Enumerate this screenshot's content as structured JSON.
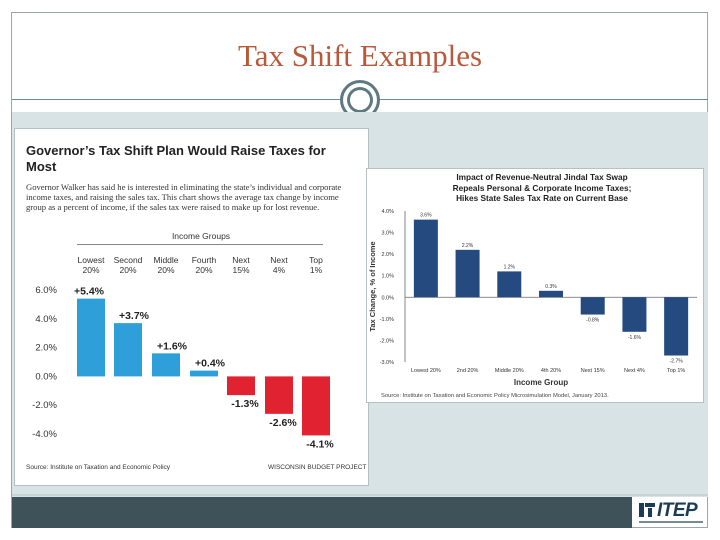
{
  "slide": {
    "title": "Tax Shift Examples",
    "logo_text": "ITEP"
  },
  "left_chart": {
    "title": "Governor’s Tax Shift Plan Would Raise Taxes for Most",
    "description": "Governor Walker has said he is interested in eliminating the state’s individual and corporate income taxes, and raising the sales tax. This chart shows the average tax change by income group as a percent of income, if the sales tax were raised to make up for lost revenue.",
    "groups_label": "Income Groups",
    "source": "Source: Institute on Taxation and Economic Policy",
    "project": "WISCONSIN BUDGET PROJECT"
  },
  "right_chart": {
    "title_lines": [
      "Impact of Revenue-Neutral Jindal Tax Swap",
      "Repeals Personal & Corporate Income Taxes;",
      "Hikes State Sales Tax Rate on Current Base"
    ],
    "source": "Source: Institute on Taxation and Economic Policy Microsimulation Model, January 2013."
  },
  "chart_data": [
    {
      "type": "bar",
      "title": "Governor’s Tax Shift Plan Would Raise Taxes for Most",
      "categories": [
        [
          "Lowest",
          "20%"
        ],
        [
          "Second",
          "20%"
        ],
        [
          "Middle",
          "20%"
        ],
        [
          "Fourth",
          "20%"
        ],
        [
          "Next",
          "15%"
        ],
        [
          "Next",
          "4%"
        ],
        [
          "Top",
          "1%"
        ]
      ],
      "values": [
        5.4,
        3.7,
        1.6,
        0.4,
        -1.3,
        -2.6,
        -4.1
      ],
      "data_labels": [
        "+5.4%",
        "+3.7%",
        "+1.6%",
        "+0.4%",
        "-1.3%",
        "-2.6%",
        "-4.1%"
      ],
      "ylim": [
        -4.0,
        6.0
      ],
      "yticks": [
        6.0,
        4.0,
        2.0,
        0.0,
        -2.0,
        -4.0
      ],
      "ytick_labels": [
        "6.0%",
        "4.0%",
        "2.0%",
        "0.0%",
        "-2.0%",
        "-4.0%"
      ],
      "colors": {
        "positive": "#2e9fd8",
        "negative": "#e02231"
      },
      "grid": false
    },
    {
      "type": "bar",
      "title": "Impact of Revenue-Neutral Jindal Tax Swap Repeals Personal & Corporate Income Taxes; Hikes State Sales Tax Rate on Current Base",
      "xlabel": "Income Group",
      "ylabel": "Tax Change, % of Income",
      "categories": [
        "Lowest 20%",
        "2nd 20%",
        "Middle 20%",
        "4th 20%",
        "Next 15%",
        "Next 4%",
        "Top 1%"
      ],
      "values": [
        3.6,
        2.2,
        1.2,
        0.3,
        -0.8,
        -1.6,
        -2.7
      ],
      "data_labels": [
        "3.6%",
        "2.2%",
        "1.2%",
        "0.3%",
        "-0.8%",
        "-1.6%",
        "-2.7%"
      ],
      "ylim": [
        -3.0,
        4.0
      ],
      "yticks": [
        4.0,
        3.0,
        2.0,
        1.0,
        0.0,
        -1.0,
        -2.0,
        -3.0
      ],
      "ytick_labels": [
        "4.0%",
        "3.0%",
        "2.0%",
        "1.0%",
        "0.0%",
        "-1.0%",
        "-2.0%",
        "-3.0%"
      ],
      "colors": {
        "bar": "#254a80"
      },
      "grid": false
    }
  ]
}
